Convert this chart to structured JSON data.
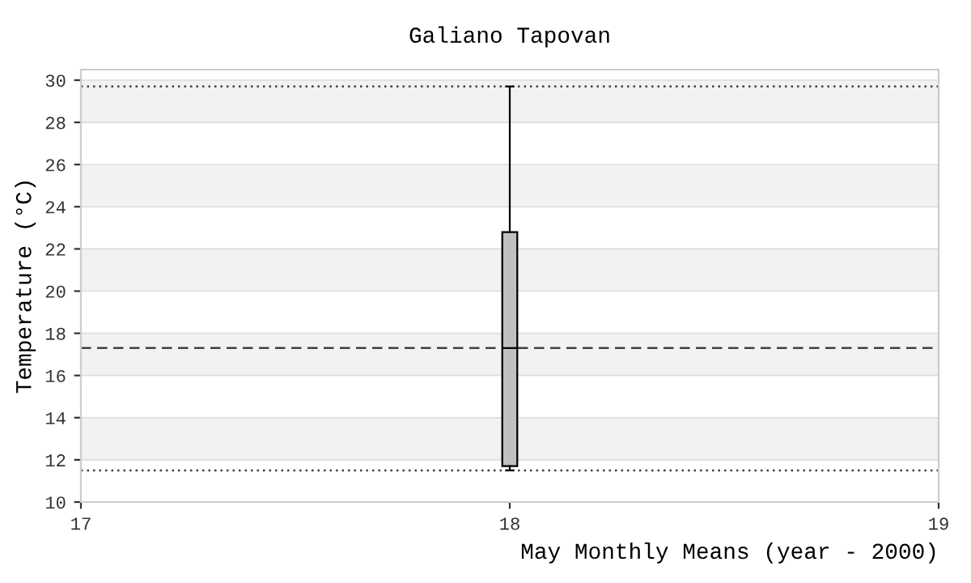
{
  "chart_data": {
    "type": "box",
    "title": "Galiano Tapovan",
    "xlabel": "May Monthly Means (year - 2000)",
    "ylabel": "Temperature (°C)",
    "x": [
      18
    ],
    "boxes": [
      {
        "low": 11.5,
        "q1": 11.7,
        "median": 17.3,
        "q3": 22.8,
        "high": 29.7
      }
    ],
    "color": "#c0c0c0",
    "xlim": [
      17,
      19
    ],
    "xticks": [
      17,
      18,
      19
    ],
    "ylim": [
      10,
      30.5
    ],
    "yticks": [
      10,
      12,
      14,
      16,
      18,
      20,
      22,
      24,
      26,
      28,
      30
    ],
    "ref_lines": [
      {
        "axis": "y",
        "value": 29.7,
        "line_style": "dotted",
        "color": "#404040"
      },
      {
        "axis": "y",
        "value": 17.3,
        "line_style": "dashed",
        "color": "#404040"
      },
      {
        "axis": "y",
        "value": 11.5,
        "line_style": "dotted",
        "color": "#404040"
      }
    ],
    "grid": "y"
  }
}
